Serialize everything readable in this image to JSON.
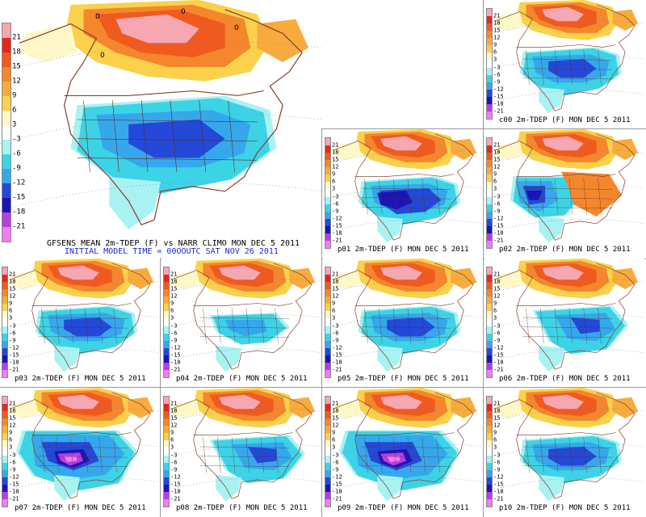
{
  "legend": {
    "labels": [
      "21",
      "18",
      "15",
      "12",
      "9",
      "6",
      "3",
      "-3",
      "-6",
      "-9",
      "-12",
      "-15",
      "-18",
      "-21"
    ],
    "colors": [
      "#f7a7b2",
      "#e3281e",
      "#f05a1e",
      "#f4862c",
      "#f7ab3c",
      "#fbd04a",
      "#fef8c9",
      "#ffffff",
      "#a8f2f2",
      "#3dd3e6",
      "#35a8ec",
      "#2448d8",
      "#1c14b8",
      "#b93ee0",
      "#f07cf5"
    ]
  },
  "main_panel": {
    "title_line": "GFSENS MEAN 2m-TDEP (F) vs NARR CLIMO MON DEC 5 2011",
    "init_line": "INITIAL MODEL TIME = 00OOUTC SAT NOV 26 2011",
    "zero_label": "0"
  },
  "members": [
    {
      "id": "c00",
      "caption": "c00  2m-TDEP (F) MON DEC 5 2011",
      "pattern": "cold-south"
    },
    {
      "id": "p01",
      "caption": "p01  2m-TDEP (F) MON DEC 5 2011",
      "pattern": "cold-south-strong"
    },
    {
      "id": "p02",
      "caption": "p02  2m-TDEP (F) MON DEC 5 2011",
      "pattern": "cold-west"
    },
    {
      "id": "p03",
      "caption": "p03  2m-TDEP (F) MON DEC 5 2011",
      "pattern": "cold-central"
    },
    {
      "id": "p04",
      "caption": "p04  2m-TDEP (F) MON DEC 5 2011",
      "pattern": "mild"
    },
    {
      "id": "p05",
      "caption": "p05  2m-TDEP (F) MON DEC 5 2011",
      "pattern": "cold-south"
    },
    {
      "id": "p06",
      "caption": "p06  2m-TDEP (F) MON DEC 5 2011",
      "pattern": "cold-east"
    },
    {
      "id": "p07",
      "caption": "p07  2m-TDEP (F) MON DEC 5 2011",
      "pattern": "cold-extreme"
    },
    {
      "id": "p08",
      "caption": "p08  2m-TDEP (F) MON DEC 5 2011",
      "pattern": "cold-east"
    },
    {
      "id": "p09",
      "caption": "p09  2m-TDEP (F) MON DEC 5 2011",
      "pattern": "cold-extreme-west"
    },
    {
      "id": "p10",
      "caption": "p10  2m-TDEP (F) MON DEC 5 2011",
      "pattern": "cold-central"
    }
  ]
}
